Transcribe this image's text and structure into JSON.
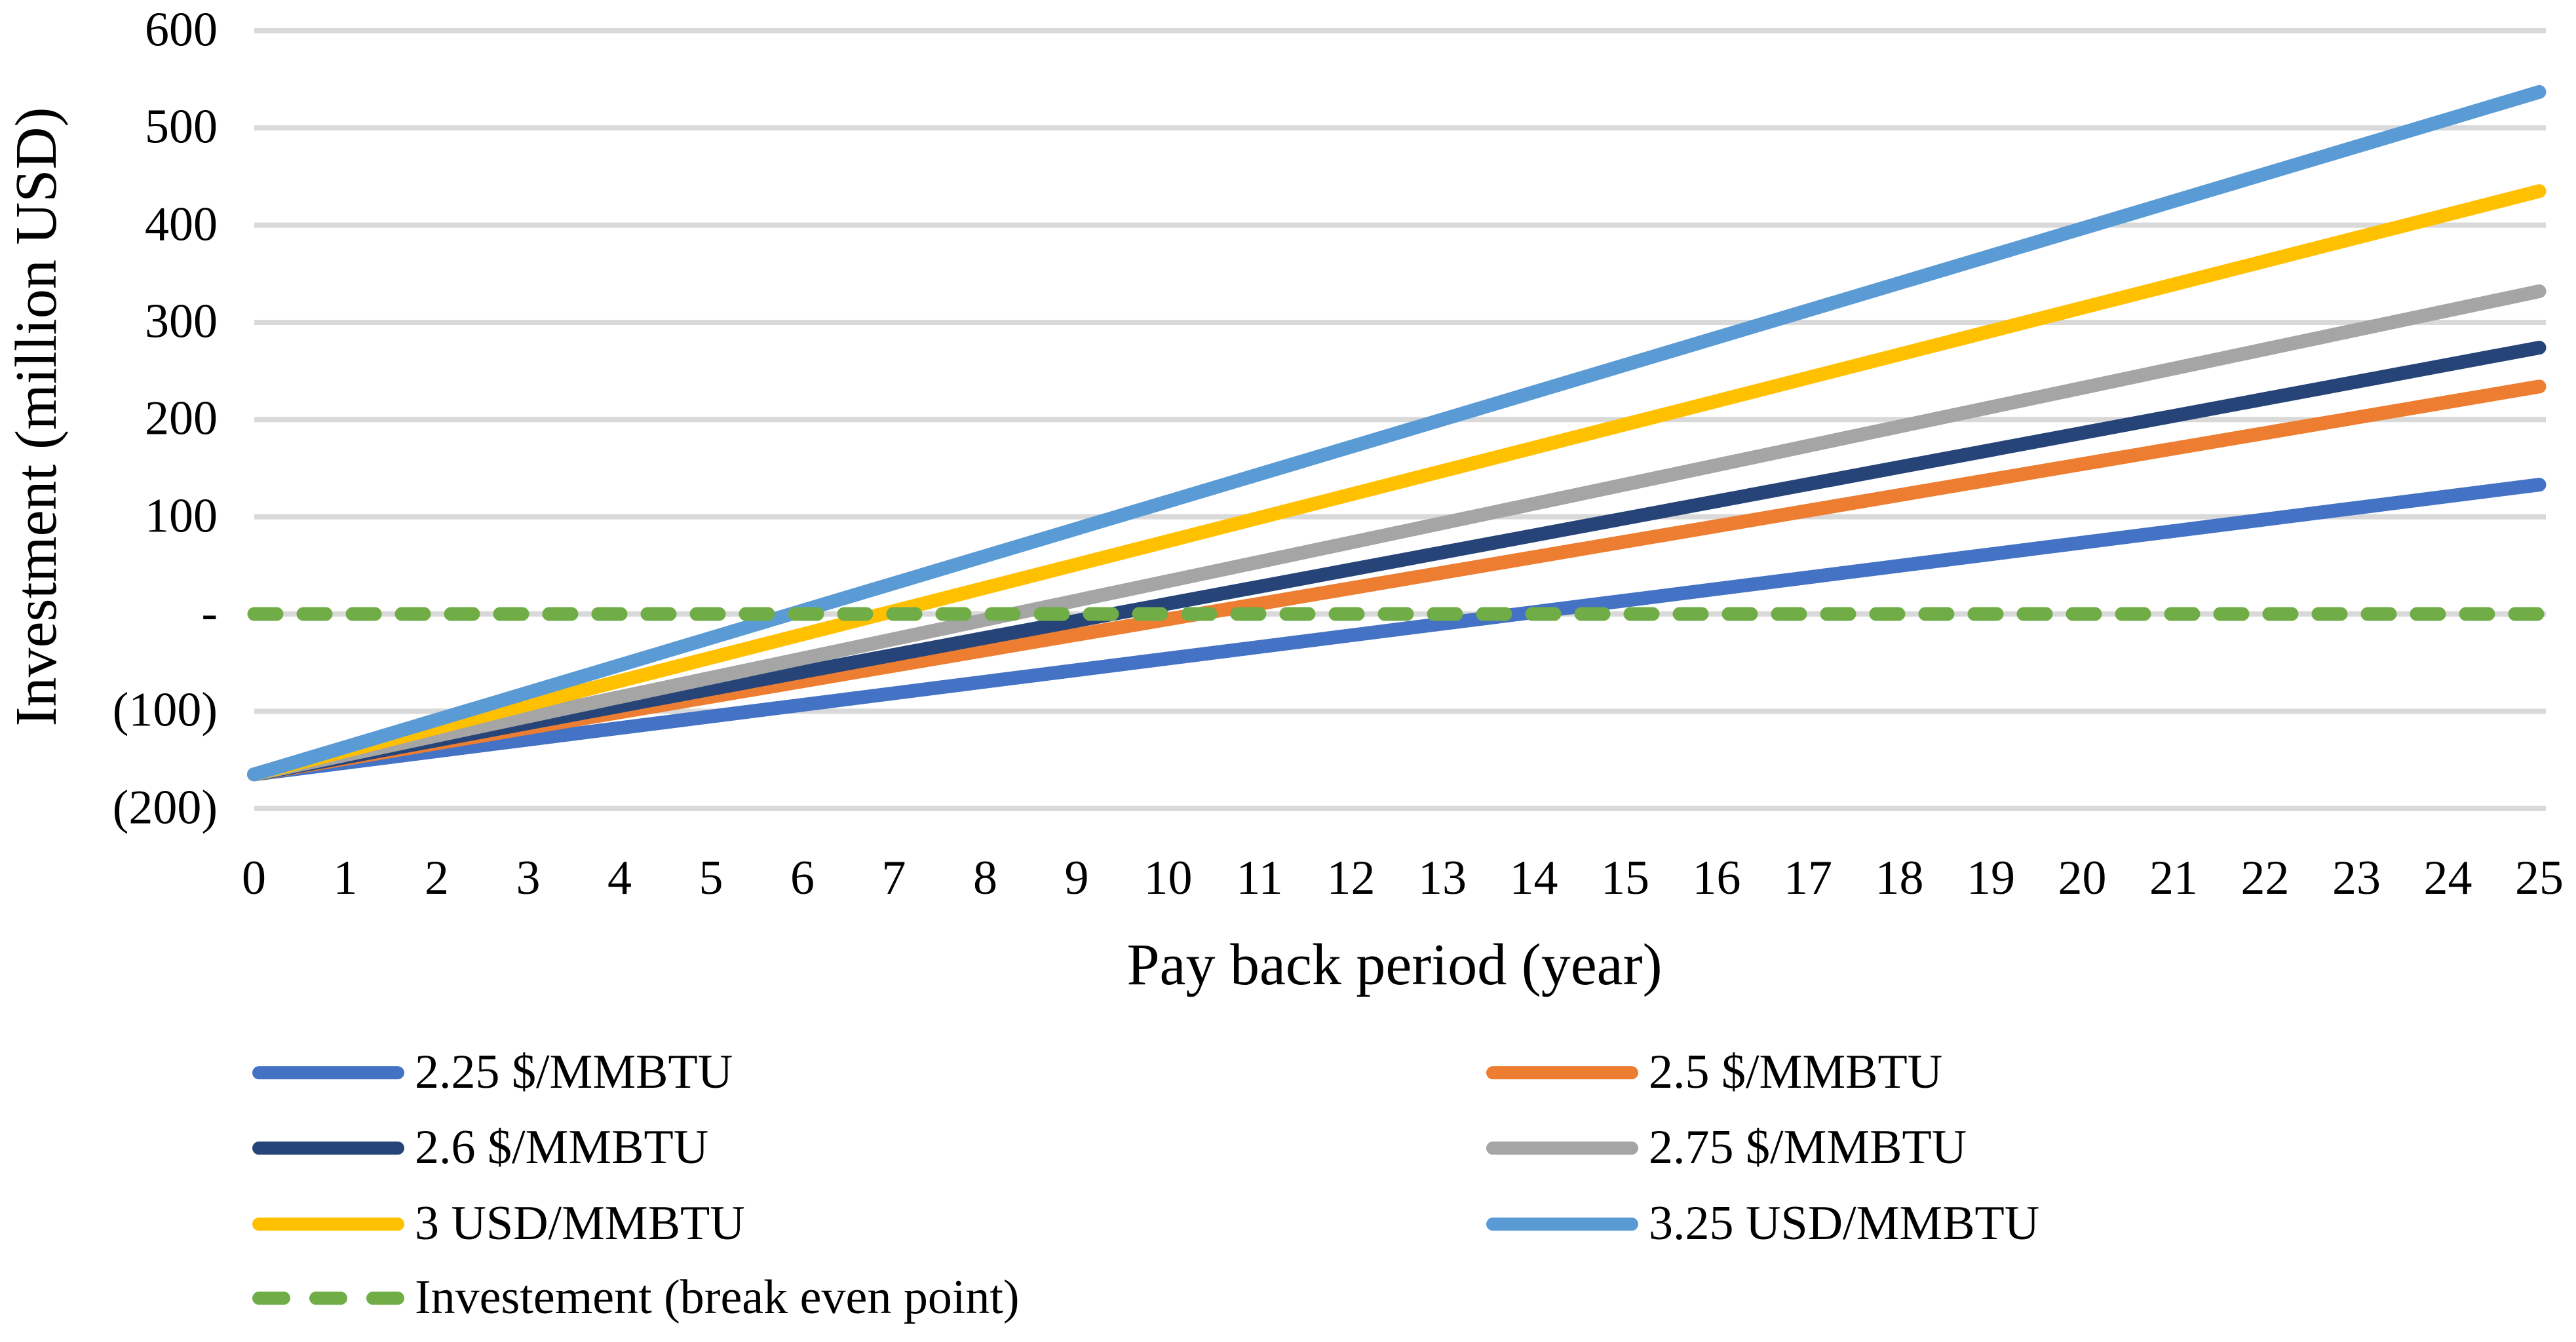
{
  "chart_data": {
    "type": "line",
    "title": "",
    "xlabel": "Pay back period (year)",
    "ylabel": "Investment (million USD)",
    "xlim": [
      0,
      25
    ],
    "ylim": [
      -200,
      600
    ],
    "grid": "horizontal",
    "gridline_step": 100,
    "legend_position": "bottom",
    "legend_columns": 2,
    "x": [
      0,
      25
    ],
    "x_ticks": [
      "0",
      "1",
      "2",
      "3",
      "4",
      "5",
      "6",
      "7",
      "8",
      "9",
      "10",
      "11",
      "12",
      "13",
      "14",
      "15",
      "16",
      "17",
      "18",
      "19",
      "20",
      "21",
      "22",
      "23",
      "24",
      "25"
    ],
    "y_ticks": [
      {
        "value": 600,
        "label": "600"
      },
      {
        "value": 500,
        "label": "500"
      },
      {
        "value": 400,
        "label": "400"
      },
      {
        "value": 300,
        "label": "300"
      },
      {
        "value": 200,
        "label": "200"
      },
      {
        "value": 100,
        "label": "100"
      },
      {
        "value": 0,
        "label": "-"
      },
      {
        "value": -100,
        "label": "(100)"
      },
      {
        "value": -200,
        "label": "(200)"
      }
    ],
    "series": [
      {
        "name": "2.25 $/MMBTU",
        "color": "#4472C4",
        "style": "solid",
        "values": [
          -165,
          133
        ]
      },
      {
        "name": "2.5 $/MMBTU",
        "color": "#ED7D31",
        "style": "solid",
        "values": [
          -165,
          234
        ]
      },
      {
        "name": "2.6 $/MMBTU",
        "color": "#264478",
        "style": "solid",
        "values": [
          -165,
          274
        ]
      },
      {
        "name": "2.75 $/MMBTU",
        "color": "#A5A5A5",
        "style": "solid",
        "values": [
          -165,
          332
        ]
      },
      {
        "name": "3 USD/MMBTU",
        "color": "#FFC000",
        "style": "solid",
        "values": [
          -165,
          435
        ]
      },
      {
        "name": "3.25 USD/MMBTU",
        "color": "#5B9BD5",
        "style": "solid",
        "values": [
          -165,
          537
        ]
      },
      {
        "name": "Investement (break even point)",
        "color": "#70AD47",
        "style": "dashed",
        "values": [
          0,
          0
        ]
      }
    ],
    "colors": {
      "gridline": "#D9D9D9",
      "background": "#FFFFFF",
      "text": "#000000"
    }
  }
}
